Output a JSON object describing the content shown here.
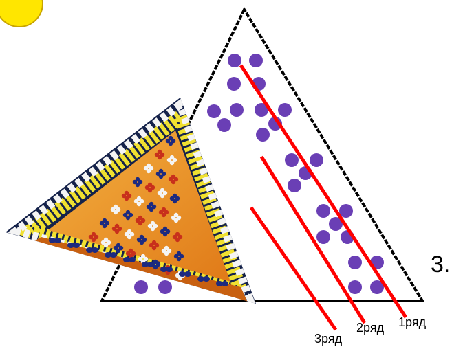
{
  "labels": {
    "row1": "1ряд",
    "row2": "2ряд",
    "row3": "3ряд",
    "edge_text": "3."
  },
  "colors": {
    "bead_purple": "#6a3fb5",
    "row_line_red": "#ff0000",
    "sun_yellow": "#ffe600",
    "sun_outline": "#c8a400",
    "photo_navy": "#15224a",
    "photo_orange": "#f0a030",
    "photo_yellow": "#f0e030",
    "photo_white": "#f4f4f4",
    "photo_red": "#c8301c",
    "photo_blue": "#1c2a80",
    "outline": "#000000"
  }
}
